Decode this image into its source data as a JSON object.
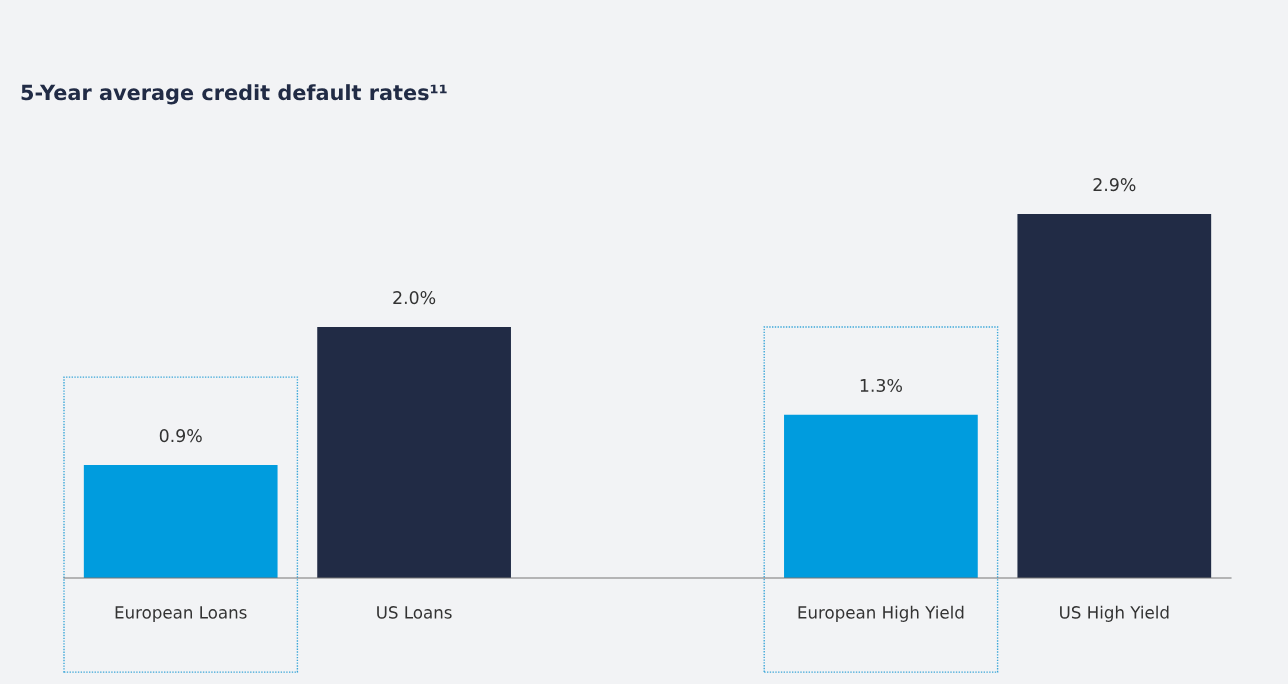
{
  "chart_data": {
    "type": "bar",
    "title": "5-Year average credit default rates¹¹",
    "categories": [
      "European Loans",
      "US Loans",
      null,
      "European High Yield",
      "US High Yield"
    ],
    "values": [
      0.9,
      2.0,
      null,
      1.3,
      2.9
    ],
    "colors": [
      "#009cde",
      "#212b45",
      "#212b45",
      "#009cde",
      "#212b45"
    ],
    "value_labels": [
      "0.9%",
      "2.0%",
      null,
      "1.3%",
      "2.9%"
    ],
    "legend": false,
    "tick_labels": "x"
  }
}
